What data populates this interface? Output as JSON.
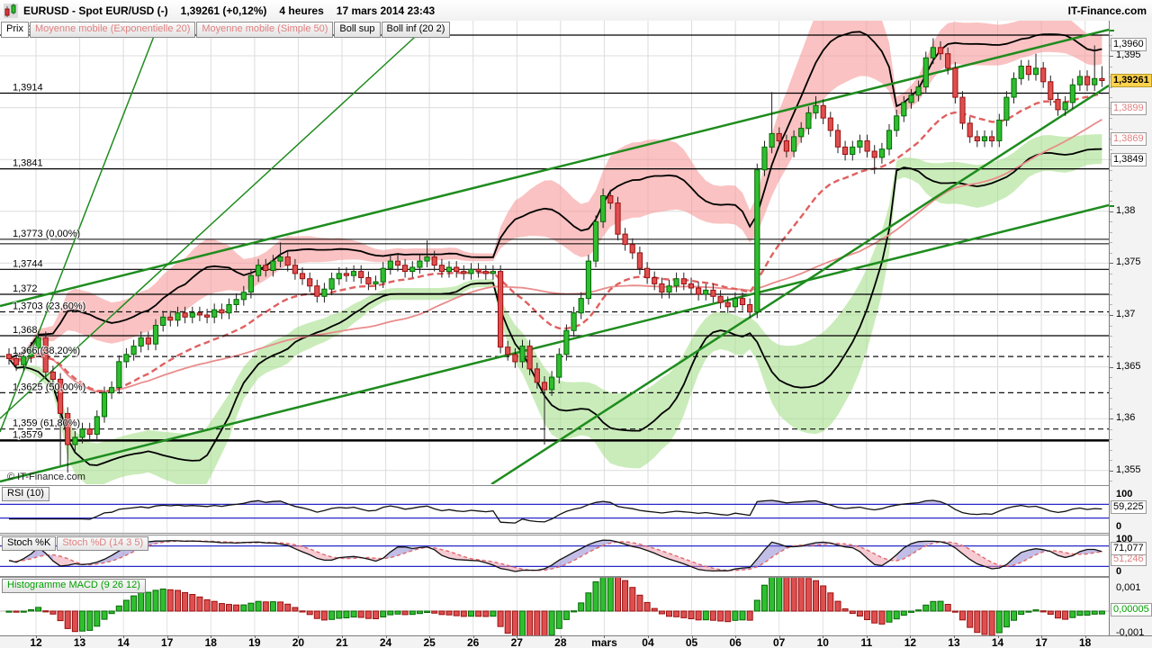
{
  "title_bar": {
    "symbol_title": "EURUSD - Spot EUR/USD (-)",
    "price_and_change": "1,39261 (+0,12%)",
    "timeframe": "4 heures",
    "timestamp": "17 mars 2014 23:43",
    "brand": "IT-Finance.com"
  },
  "tabs": {
    "prix": "Prix",
    "ema": "Moyenne mobile (Exponentielle 20)",
    "sma": "Moyenne mobile (Simple 50)",
    "boll_sup": "Boll sup",
    "boll_inf": "Boll inf (20 2)"
  },
  "watermark": "© IT-Finance.com",
  "panels": {
    "rsi": {
      "label": "RSI (10)",
      "max": "100",
      "min": "0",
      "value": "59,225",
      "levels": [
        70,
        30
      ]
    },
    "stoch": {
      "label_k": "Stoch %K",
      "label_d": "Stoch %D (14 3 5)",
      "max": "100",
      "min": "0",
      "value_k": "71,077",
      "value_d": "51,246",
      "levels": [
        80,
        20
      ]
    },
    "macd": {
      "label": "Histogramme MACD (9 26 12)",
      "upper": "0,001",
      "lower": "-0,001",
      "value": "0,00005"
    }
  },
  "x_axis": {
    "labels": [
      "12",
      "13",
      "14",
      "17",
      "18",
      "19",
      "20",
      "21",
      "24",
      "25",
      "26",
      "27",
      "28",
      "mars",
      "04",
      "05",
      "06",
      "07",
      "10",
      "11",
      "12",
      "13",
      "14",
      "17",
      "18"
    ],
    "bold_label": "mars"
  },
  "y_axis": {
    "ticks": [
      {
        "text": "1,395",
        "p": 1.395
      },
      {
        "text": "1,38",
        "p": 1.38
      },
      {
        "text": "1,375",
        "p": 1.375
      },
      {
        "text": "1,37",
        "p": 1.37
      },
      {
        "text": "1,365",
        "p": 1.365
      },
      {
        "text": "1,36",
        "p": 1.36
      },
      {
        "text": "1,355",
        "p": 1.355
      }
    ],
    "boxed": [
      {
        "text": "1,3960",
        "p": 1.396,
        "type": "plain"
      },
      {
        "text": "1,39261",
        "p": 1.39261,
        "type": "last"
      },
      {
        "text": "1,3899",
        "p": 1.3899,
        "type": "pink"
      },
      {
        "text": "1,3869",
        "p": 1.3869,
        "type": "pink"
      },
      {
        "text": "1,3849",
        "p": 1.3849,
        "type": "plain"
      }
    ]
  },
  "levels": [
    {
      "text": "1,397",
      "p": 1.397,
      "style": "solid"
    },
    {
      "text": "1,3914",
      "p": 1.3914,
      "style": "solid"
    },
    {
      "text": "1,3841",
      "p": 1.3841,
      "style": "solid"
    },
    {
      "text": "1,3773 (0,00%)",
      "p": 1.3773,
      "style": "double"
    },
    {
      "text": "1,3744",
      "p": 1.3744,
      "style": "solid"
    },
    {
      "text": "1,372",
      "p": 1.372,
      "style": "solid"
    },
    {
      "text": "1,3703 (23,60%)",
      "p": 1.3703,
      "style": "dashed"
    },
    {
      "text": "1,368",
      "p": 1.368,
      "style": "solid"
    },
    {
      "text": "1,366 (38,20%)",
      "p": 1.366,
      "style": "dashed"
    },
    {
      "text": "1,3625 (50,00%)",
      "p": 1.3625,
      "style": "dashed"
    },
    {
      "text": "1,359 (61,80%)",
      "p": 1.359,
      "style": "dashed"
    },
    {
      "text": "1,3579",
      "p": 1.3579,
      "style": "thick"
    }
  ],
  "chart_data": {
    "type": "candlestick",
    "symbol": "EUR/USD",
    "timeframe": "4 heures",
    "y_range": [
      1.3537,
      1.3967
    ],
    "indicators": {
      "ema_period": 20,
      "sma_period": 50,
      "bollinger": [
        20,
        2
      ],
      "rsi_period": 10,
      "stoch": [
        14,
        3,
        5
      ],
      "macd": [
        9,
        26,
        12
      ]
    },
    "trendlines": [
      {
        "x1": 0,
        "y1": 457,
        "x2": 175,
        "y2": 7,
        "w": 1.5
      },
      {
        "x1": 0,
        "y1": 442,
        "x2": 473,
        "y2": 7,
        "w": 1.5
      },
      {
        "x1": 546,
        "y1": 515,
        "x2": 1232,
        "y2": 72,
        "w": 2.5
      },
      {
        "x1": 0,
        "y1": 317,
        "x2": 1232,
        "y2": 10,
        "w": 2.5
      },
      {
        "x1": 0,
        "y1": 512,
        "x2": 1232,
        "y2": 205,
        "w": 2.5
      }
    ],
    "ohlc": [
      [
        1.3662,
        1.3668,
        1.3652,
        1.3658
      ],
      [
        1.3658,
        1.3664,
        1.3646,
        1.3652
      ],
      [
        1.3652,
        1.3666,
        1.3646,
        1.366
      ],
      [
        1.366,
        1.3674,
        1.3654,
        1.3668
      ],
      [
        1.3668,
        1.3684,
        1.3662,
        1.3678
      ],
      [
        1.3678,
        1.3684,
        1.3639,
        1.3645
      ],
      [
        1.3645,
        1.3651,
        1.3632,
        1.3638
      ],
      [
        1.3638,
        1.3644,
        1.3555,
        1.3605
      ],
      [
        1.3605,
        1.3611,
        1.3548,
        1.3575
      ],
      [
        1.3575,
        1.3588,
        1.3569,
        1.3582
      ],
      [
        1.3582,
        1.3596,
        1.3576,
        1.359
      ],
      [
        1.359,
        1.3596,
        1.3579,
        1.3585
      ],
      [
        1.3585,
        1.3608,
        1.3579,
        1.3602
      ],
      [
        1.3602,
        1.3631,
        1.3596,
        1.3625
      ],
      [
        1.3625,
        1.3636,
        1.3619,
        1.363
      ],
      [
        1.363,
        1.3661,
        1.3624,
        1.3655
      ],
      [
        1.3655,
        1.3668,
        1.3649,
        1.3662
      ],
      [
        1.3662,
        1.3676,
        1.3656,
        1.367
      ],
      [
        1.367,
        1.3684,
        1.3664,
        1.3678
      ],
      [
        1.3678,
        1.3684,
        1.3666,
        1.3672
      ],
      [
        1.3672,
        1.3696,
        1.3666,
        1.369
      ],
      [
        1.369,
        1.3704,
        1.3684,
        1.3698
      ],
      [
        1.3698,
        1.3704,
        1.3689,
        1.3695
      ],
      [
        1.3695,
        1.3708,
        1.3689,
        1.3702
      ],
      [
        1.3702,
        1.3708,
        1.3692,
        1.3698
      ],
      [
        1.3698,
        1.3708,
        1.3692,
        1.3702
      ],
      [
        1.3702,
        1.3708,
        1.3694,
        1.37
      ],
      [
        1.37,
        1.3706,
        1.3692,
        1.3698
      ],
      [
        1.3698,
        1.3711,
        1.3692,
        1.3705
      ],
      [
        1.3705,
        1.3711,
        1.3696,
        1.3702
      ],
      [
        1.3702,
        1.3716,
        1.3696,
        1.371
      ],
      [
        1.371,
        1.3721,
        1.3704,
        1.3715
      ],
      [
        1.3715,
        1.3728,
        1.3709,
        1.3722
      ],
      [
        1.3722,
        1.3744,
        1.3716,
        1.3738
      ],
      [
        1.3738,
        1.3754,
        1.3732,
        1.3748
      ],
      [
        1.3748,
        1.3754,
        1.3737,
        1.3743
      ],
      [
        1.3743,
        1.3758,
        1.3737,
        1.3752
      ],
      [
        1.3752,
        1.377,
        1.3746,
        1.3756
      ],
      [
        1.3756,
        1.3762,
        1.3742,
        1.3748
      ],
      [
        1.3748,
        1.3754,
        1.3734,
        1.374
      ],
      [
        1.374,
        1.3746,
        1.3729,
        1.3735
      ],
      [
        1.3735,
        1.3741,
        1.3722,
        1.3728
      ],
      [
        1.3728,
        1.3734,
        1.3712,
        1.3718
      ],
      [
        1.3718,
        1.3731,
        1.3712,
        1.3725
      ],
      [
        1.3725,
        1.3741,
        1.3719,
        1.3735
      ],
      [
        1.3735,
        1.3746,
        1.3729,
        1.374
      ],
      [
        1.374,
        1.3746,
        1.3732,
        1.3738
      ],
      [
        1.3738,
        1.3748,
        1.3732,
        1.3742
      ],
      [
        1.3742,
        1.3748,
        1.373,
        1.3736
      ],
      [
        1.3736,
        1.3742,
        1.3724,
        1.373
      ],
      [
        1.373,
        1.3738,
        1.3724,
        1.3732
      ],
      [
        1.3732,
        1.3751,
        1.3726,
        1.3745
      ],
      [
        1.3745,
        1.3758,
        1.3739,
        1.3752
      ],
      [
        1.3752,
        1.3758,
        1.3742,
        1.3748
      ],
      [
        1.3748,
        1.3754,
        1.3736,
        1.3742
      ],
      [
        1.3742,
        1.3752,
        1.3736,
        1.3746
      ],
      [
        1.3746,
        1.3758,
        1.374,
        1.3752
      ],
      [
        1.3752,
        1.3772,
        1.3746,
        1.3756
      ],
      [
        1.3756,
        1.3762,
        1.3742,
        1.3748
      ],
      [
        1.3748,
        1.3754,
        1.3736,
        1.3742
      ],
      [
        1.3742,
        1.3752,
        1.3736,
        1.3746
      ],
      [
        1.3746,
        1.3752,
        1.3736,
        1.3742
      ],
      [
        1.3742,
        1.3748,
        1.3734,
        1.374
      ],
      [
        1.374,
        1.375,
        1.3734,
        1.3744
      ],
      [
        1.3744,
        1.375,
        1.3736,
        1.3742
      ],
      [
        1.3742,
        1.3748,
        1.3734,
        1.374
      ],
      [
        1.374,
        1.3748,
        1.3734,
        1.3742
      ],
      [
        1.3742,
        1.3748,
        1.3663,
        1.3669
      ],
      [
        1.3669,
        1.3675,
        1.3656,
        1.3662
      ],
      [
        1.3662,
        1.3668,
        1.3649,
        1.3655
      ],
      [
        1.3655,
        1.3676,
        1.3649,
        1.367
      ],
      [
        1.367,
        1.3676,
        1.3642,
        1.3648
      ],
      [
        1.3648,
        1.3654,
        1.3629,
        1.3635
      ],
      [
        1.3635,
        1.3641,
        1.3575,
        1.3628
      ],
      [
        1.3628,
        1.3646,
        1.3622,
        1.364
      ],
      [
        1.364,
        1.3668,
        1.3634,
        1.3662
      ],
      [
        1.3662,
        1.3691,
        1.3656,
        1.3685
      ],
      [
        1.3685,
        1.3708,
        1.3679,
        1.3702
      ],
      [
        1.3702,
        1.3722,
        1.3696,
        1.3716
      ],
      [
        1.3716,
        1.3758,
        1.371,
        1.3752
      ],
      [
        1.3752,
        1.3796,
        1.3746,
        1.379
      ],
      [
        1.379,
        1.3822,
        1.3784,
        1.3815
      ],
      [
        1.3815,
        1.3821,
        1.3802,
        1.3808
      ],
      [
        1.3808,
        1.3814,
        1.3772,
        1.3778
      ],
      [
        1.3778,
        1.3784,
        1.3762,
        1.3768
      ],
      [
        1.3768,
        1.3774,
        1.3754,
        1.376
      ],
      [
        1.376,
        1.3766,
        1.3739,
        1.3745
      ],
      [
        1.3745,
        1.3751,
        1.373,
        1.3736
      ],
      [
        1.3736,
        1.3742,
        1.3724,
        1.373
      ],
      [
        1.373,
        1.3736,
        1.3716,
        1.3722
      ],
      [
        1.3722,
        1.3734,
        1.3716,
        1.3728
      ],
      [
        1.3728,
        1.3741,
        1.3722,
        1.3735
      ],
      [
        1.3735,
        1.3741,
        1.3724,
        1.373
      ],
      [
        1.373,
        1.3736,
        1.372,
        1.3726
      ],
      [
        1.3726,
        1.3732,
        1.3714,
        1.372
      ],
      [
        1.372,
        1.373,
        1.3714,
        1.3724
      ],
      [
        1.3724,
        1.373,
        1.3712,
        1.3718
      ],
      [
        1.3718,
        1.3724,
        1.3706,
        1.3712
      ],
      [
        1.3712,
        1.3718,
        1.3702,
        1.3708
      ],
      [
        1.3708,
        1.3722,
        1.3702,
        1.3716
      ],
      [
        1.3716,
        1.3722,
        1.3704,
        1.371
      ],
      [
        1.371,
        1.3716,
        1.3697,
        1.3703
      ],
      [
        1.3703,
        1.3846,
        1.3697,
        1.384
      ],
      [
        1.384,
        1.3868,
        1.3834,
        1.3862
      ],
      [
        1.3862,
        1.3915,
        1.3856,
        1.3875
      ],
      [
        1.3875,
        1.3881,
        1.3862,
        1.3868
      ],
      [
        1.3868,
        1.3874,
        1.3852,
        1.3858
      ],
      [
        1.3858,
        1.3878,
        1.3852,
        1.3872
      ],
      [
        1.3872,
        1.3886,
        1.3866,
        1.388
      ],
      [
        1.388,
        1.3901,
        1.3874,
        1.3895
      ],
      [
        1.3895,
        1.3911,
        1.3889,
        1.3902
      ],
      [
        1.3902,
        1.3908,
        1.3884,
        1.389
      ],
      [
        1.389,
        1.3896,
        1.3872,
        1.3878
      ],
      [
        1.3878,
        1.3884,
        1.3856,
        1.3862
      ],
      [
        1.3862,
        1.3868,
        1.3849,
        1.3855
      ],
      [
        1.3855,
        1.3868,
        1.3849,
        1.3862
      ],
      [
        1.3862,
        1.3874,
        1.3856,
        1.3868
      ],
      [
        1.3868,
        1.3874,
        1.3852,
        1.3858
      ],
      [
        1.3858,
        1.3864,
        1.3836,
        1.3852
      ],
      [
        1.3852,
        1.3866,
        1.3846,
        1.386
      ],
      [
        1.386,
        1.3884,
        1.3854,
        1.3878
      ],
      [
        1.3878,
        1.3898,
        1.3872,
        1.3892
      ],
      [
        1.3892,
        1.3911,
        1.3886,
        1.3905
      ],
      [
        1.3905,
        1.3918,
        1.3899,
        1.3912
      ],
      [
        1.3912,
        1.3926,
        1.3906,
        1.392
      ],
      [
        1.392,
        1.3954,
        1.3914,
        1.3948
      ],
      [
        1.3948,
        1.3967,
        1.3942,
        1.3958
      ],
      [
        1.3958,
        1.3964,
        1.3946,
        1.3952
      ],
      [
        1.3952,
        1.3958,
        1.3932,
        1.3938
      ],
      [
        1.3938,
        1.3944,
        1.3904,
        1.391
      ],
      [
        1.391,
        1.3916,
        1.3879,
        1.3885
      ],
      [
        1.3885,
        1.3891,
        1.3866,
        1.3872
      ],
      [
        1.3872,
        1.3878,
        1.3862,
        1.3868
      ],
      [
        1.3868,
        1.3878,
        1.3862,
        1.3872
      ],
      [
        1.3872,
        1.3878,
        1.3862,
        1.3868
      ],
      [
        1.3868,
        1.3894,
        1.3862,
        1.3888
      ],
      [
        1.3888,
        1.3916,
        1.3882,
        1.391
      ],
      [
        1.391,
        1.3934,
        1.3904,
        1.3928
      ],
      [
        1.3928,
        1.3946,
        1.3922,
        1.394
      ],
      [
        1.394,
        1.3946,
        1.3926,
        1.3932
      ],
      [
        1.3932,
        1.3952,
        1.3926,
        1.3938
      ],
      [
        1.3938,
        1.3944,
        1.3919,
        1.3925
      ],
      [
        1.3925,
        1.3931,
        1.3902,
        1.3908
      ],
      [
        1.3908,
        1.3914,
        1.3892,
        1.3898
      ],
      [
        1.3898,
        1.3911,
        1.3892,
        1.3905
      ],
      [
        1.3905,
        1.3928,
        1.3899,
        1.3922
      ],
      [
        1.3922,
        1.3936,
        1.3916,
        1.393
      ],
      [
        1.393,
        1.3936,
        1.3916,
        1.3922
      ],
      [
        1.3922,
        1.396,
        1.3916,
        1.3928
      ],
      [
        1.3928,
        1.394,
        1.392,
        1.39261
      ]
    ]
  },
  "colors": {
    "candle_up": "#2fbe2f",
    "candle_up_border": "#056805",
    "candle_down": "#de4f4f",
    "candle_down_border": "#9b0f0f",
    "cloud_up": "rgba(246,153,153,0.6)",
    "cloud_down": "rgba(166,224,140,0.6)",
    "bollinger": "#000000",
    "ema": "#e06060",
    "sma": "#ea8c8c",
    "trend": "#1e8c1e",
    "blue_level": "#2929c8",
    "last_price_bg": "#ffd24d",
    "ma_label": "#e07f7f",
    "macd_green": "#00a000"
  }
}
